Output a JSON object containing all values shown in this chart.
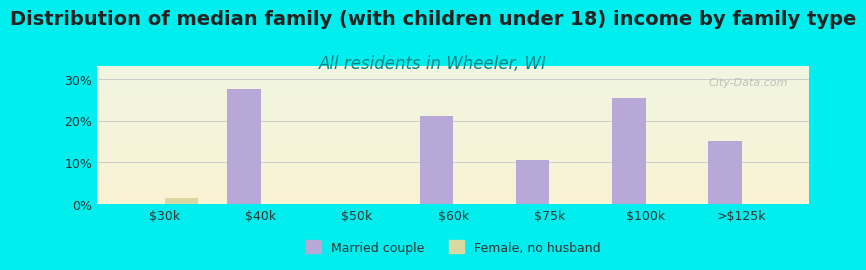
{
  "title": "Distribution of median family (with children under 18) income by family type",
  "subtitle": "All residents in Wheeler, WI",
  "title_fontsize": 14,
  "subtitle_fontsize": 12,
  "background_color": "#00EEEE",
  "plot_bg_top": "#e8f5e0",
  "plot_bg_bottom": "#f5f5ee",
  "categories": [
    "$30k",
    "$40k",
    "$50k",
    "$60k",
    "$75k",
    "$100k",
    ">$125k"
  ],
  "married_values": [
    0,
    27.5,
    0,
    21.0,
    10.5,
    25.5,
    15.0
  ],
  "female_values": [
    1.5,
    0,
    0,
    0,
    0,
    0,
    0
  ],
  "married_color": "#b8a8d8",
  "female_color": "#d8d8a0",
  "bar_width": 0.35,
  "ylim": [
    0,
    33
  ],
  "yticks": [
    0,
    10,
    20,
    30
  ],
  "ytick_labels": [
    "0%",
    "10%",
    "20%",
    "30%"
  ],
  "watermark": "City-Data.com",
  "legend_married": "Married couple",
  "legend_female": "Female, no husband",
  "subtitle_color": "#008888",
  "title_color": "#222222",
  "grid_color": "#cccccc"
}
